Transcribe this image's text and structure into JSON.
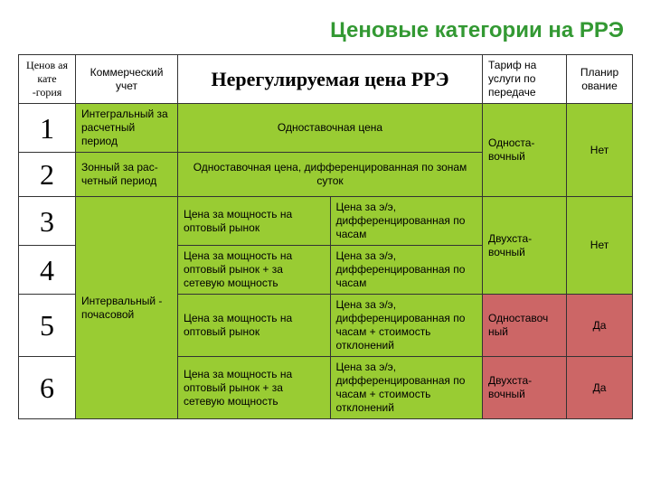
{
  "title": "Ценовые категории на РРЭ",
  "header": {
    "col1": "Ценов ая кате -гория",
    "col2": "Коммерческий учет",
    "col34": "Нерегулируемая цена РРЭ",
    "col5": "Тариф на услуги по передаче",
    "col6": "Планир ование"
  },
  "labels": {
    "metering_integral": "Интегральный за расчетный период",
    "metering_zonal": "Зонный за рас-четный период",
    "metering_interval": "Интервальный - почасовой",
    "r1_price": "Одноставочная цена",
    "r2_price": "Одноставочная цена, дифференцированная по зонам суток",
    "cap_wholesale": "Цена за мощность на оптовый рынок",
    "cap_wholesale_net": "Цена за мощность на оптовый рынок + за сетевую мощность",
    "ee_hours": "Цена за э/э, дифференцированная по часам",
    "ee_hours_dev": "Цена за э/э, дифференцированная по часам + стоимость отклонений",
    "tariff_single": "Односта-вочный",
    "tariff_single2": "Одноставоч ный",
    "tariff_double": "Двухста-вочный",
    "no": "Нет",
    "yes": "Да"
  },
  "nums": {
    "r1": "1",
    "r2": "2",
    "r3": "3",
    "r4": "4",
    "r5": "5",
    "r6": "6"
  },
  "colors": {
    "title": "#339933",
    "green": "#99cc33",
    "coral": "#cc6666",
    "border": "#333333"
  }
}
